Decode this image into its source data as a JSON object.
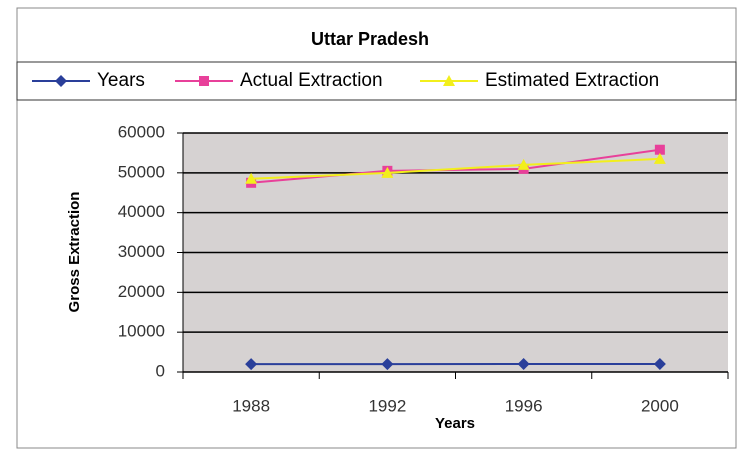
{
  "chart_data": {
    "type": "line",
    "title": "Uttar Pradesh",
    "categories": [
      "1988",
      "1992",
      "1996",
      "2000"
    ],
    "series": [
      {
        "name": "Years",
        "color": "#2a3f9a",
        "marker": "diamond",
        "values": [
          1988,
          1992,
          1996,
          2000
        ]
      },
      {
        "name": "Actual Extraction",
        "color": "#e8409a",
        "marker": "square",
        "values": [
          47500,
          50500,
          51000,
          55800
        ]
      },
      {
        "name": "Estimated Extraction",
        "color": "#f2ef1c",
        "marker": "triangle",
        "values": [
          48500,
          50000,
          52000,
          53500
        ]
      }
    ],
    "xlabel": "Years",
    "ylabel": "Gross Extraction",
    "ylim": [
      0,
      60000
    ],
    "yticks": [
      0,
      10000,
      20000,
      30000,
      40000,
      50000,
      60000
    ],
    "grid": true,
    "legend": "top"
  }
}
